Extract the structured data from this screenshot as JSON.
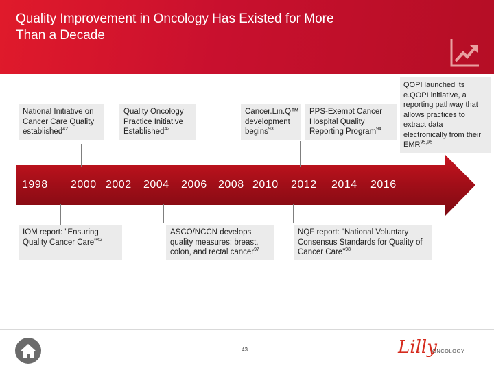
{
  "header": {
    "title": "Quality Improvement in Oncology Has Existed for More Than a Decade",
    "icon": "trend-up-icon"
  },
  "timeline": {
    "years": [
      "1998",
      "2000",
      "2002",
      "2004",
      "2006",
      "2008",
      "2010",
      "2012",
      "2014",
      "2016"
    ],
    "events_top": [
      {
        "text": "National Initiative on Cancer Care Quality established",
        "ref": "42"
      },
      {
        "text": "Quality Oncology Practice Initiative Established",
        "ref": "42"
      },
      {
        "text": "Cancer.Lin.Q™ development begins",
        "ref": "93"
      },
      {
        "text": "PPS-Exempt Cancer Hospital Quality Reporting Program",
        "ref": "94"
      },
      {
        "text": "QOPI launched its e.QOPI initiative, a reporting pathway that allows practices to extract data electronically from their EMR",
        "ref": "95,96"
      }
    ],
    "events_bottom": [
      {
        "text": "IOM report: \"Ensuring Quality Cancer Care\"",
        "ref": "42"
      },
      {
        "text": "ASCO/NCCN develops quality measures: breast, colon, and rectal cancer",
        "ref": "97"
      },
      {
        "text": "NQF report: \"National Voluntary Consensus Standards for Quality of Cancer Care\"",
        "ref": "98"
      }
    ]
  },
  "footer": {
    "page_number": "43",
    "logo_text": "Lilly",
    "logo_subtext": "ONCOLOGY",
    "home_icon": "home-icon"
  },
  "colors": {
    "brand_red": "#c8102e",
    "box_gray": "#ebebeb"
  }
}
